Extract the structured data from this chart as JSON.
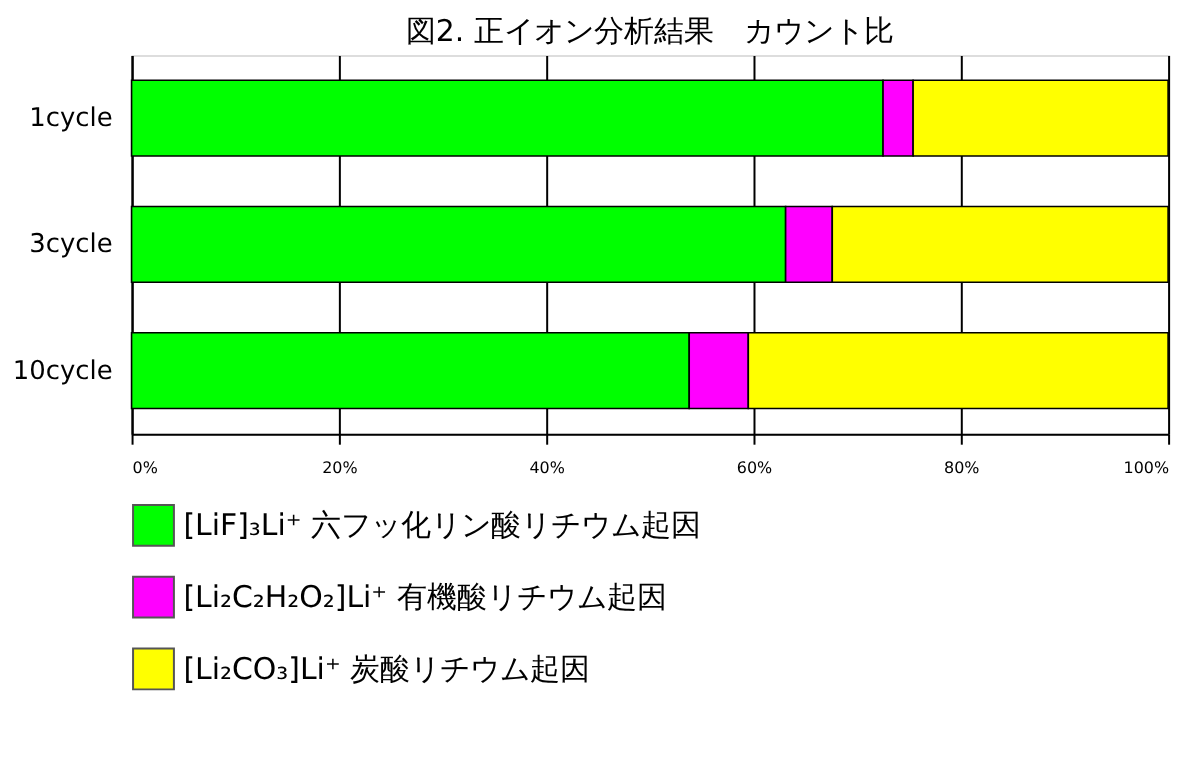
{
  "chart_data": {
    "type": "bar",
    "orientation": "horizontal",
    "stacked": true,
    "title": "図2.  正イオン分析結果　カウント比",
    "categories": [
      "1cycle",
      "3cycle",
      "10cycle"
    ],
    "series": [
      {
        "name": "[LiF]₃Li⁺ 六フッ化リン酸リチウム起因",
        "color": "#00ff00",
        "values": [
          72.5,
          63.1,
          53.8
        ]
      },
      {
        "name": "[Li₂C₂H₂O₂]Li⁺ 有機酸リチウム起因",
        "color": "#ff00ff",
        "values": [
          2.9,
          4.5,
          5.7
        ]
      },
      {
        "name": "[Li₂CO₃]Li⁺ 炭酸リチウム起因",
        "color": "#ffff00",
        "values": [
          24.6,
          32.4,
          40.5
        ]
      }
    ],
    "xlim": [
      0,
      100
    ],
    "xticks": [
      {
        "value": 0,
        "label": "0%"
      },
      {
        "value": 20,
        "label": "20%"
      },
      {
        "value": 40,
        "label": "40%"
      },
      {
        "value": 60,
        "label": "60%"
      },
      {
        "value": 80,
        "label": "80%"
      },
      {
        "value": 100,
        "label": "100%"
      }
    ],
    "grid": "x",
    "legend": "bottom"
  }
}
